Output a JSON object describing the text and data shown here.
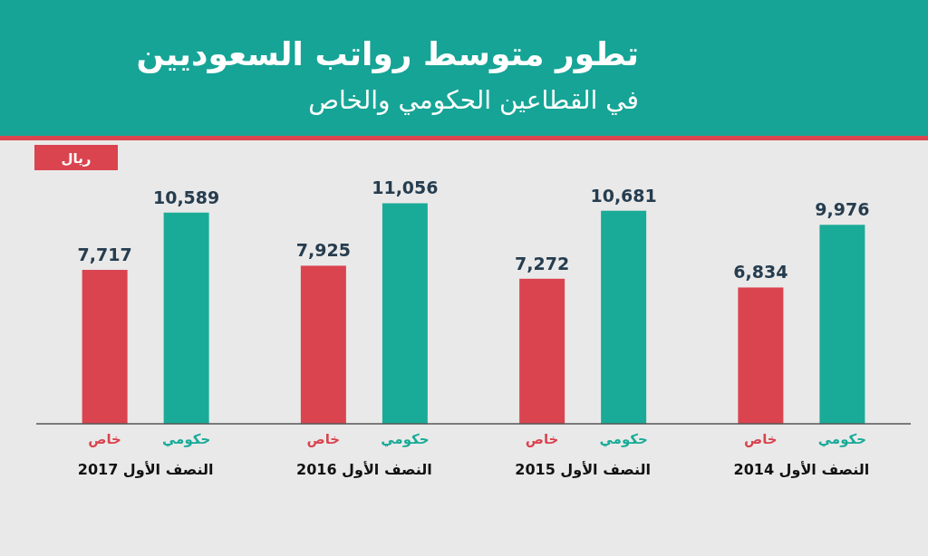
{
  "chart_data": {
    "type": "bar",
    "title": "تطور متوسط رواتب السعوديين",
    "subtitle": "في القطاعين الحكومي والخاص",
    "ylabel": "ريال",
    "categories": [
      "النصف الأول 2017",
      "النصف الأول 2016",
      "النصف الأول 2015",
      "النصف الأول 2014"
    ],
    "series": [
      {
        "name": "خاص",
        "color": "#d9444f",
        "values": [
          7717,
          7925,
          7272,
          6834
        ],
        "value_labels": [
          "7,717",
          "7,925",
          "7,272",
          "6,834"
        ]
      },
      {
        "name": "حكومي",
        "color": "#1aab98",
        "values": [
          10589,
          11056,
          10681,
          9976
        ],
        "value_labels": [
          "10,589",
          "11,056",
          "10,681",
          "9,976"
        ]
      }
    ]
  }
}
